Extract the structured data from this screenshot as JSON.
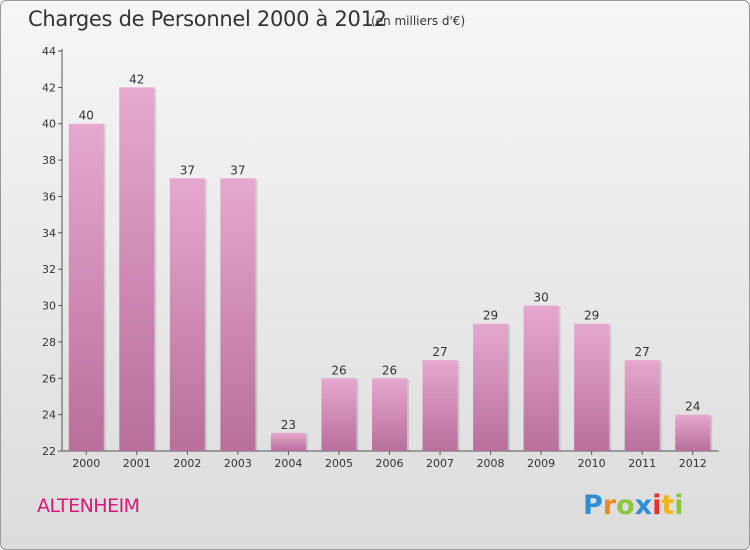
{
  "header": {
    "title": "Charges de Personnel 2000 à 2012",
    "subtitle": "(en milliers d'€)"
  },
  "footer": {
    "commune": "ALTENHEIM",
    "logo_letters": [
      {
        "char": "P",
        "color": "#2f8fd6"
      },
      {
        "char": "r",
        "color": "#f08a1c"
      },
      {
        "char": "o",
        "color": "#8cc63f"
      },
      {
        "char": "x",
        "color": "#2f8fd6"
      },
      {
        "char": "i",
        "color": "#e8302c"
      },
      {
        "char": "t",
        "color": "#f5b21a"
      },
      {
        "char": "i",
        "color": "#8cc63f"
      }
    ]
  },
  "chart_data": {
    "type": "bar",
    "title": "Charges de Personnel 2000 à 2012",
    "subtitle": "(en milliers d'€)",
    "categories": [
      "2000",
      "2001",
      "2002",
      "2003",
      "2004",
      "2005",
      "2006",
      "2007",
      "2008",
      "2009",
      "2010",
      "2011",
      "2012"
    ],
    "values": [
      40,
      42,
      37,
      37,
      23,
      26,
      26,
      27,
      29,
      30,
      29,
      27,
      24
    ],
    "ylim": [
      22,
      44
    ],
    "yticks": [
      22,
      24,
      26,
      28,
      30,
      32,
      34,
      36,
      38,
      40,
      42,
      44
    ],
    "grid": false,
    "bar_color_top": "#e6a8cf",
    "bar_color_bottom": "#b86f9b"
  }
}
